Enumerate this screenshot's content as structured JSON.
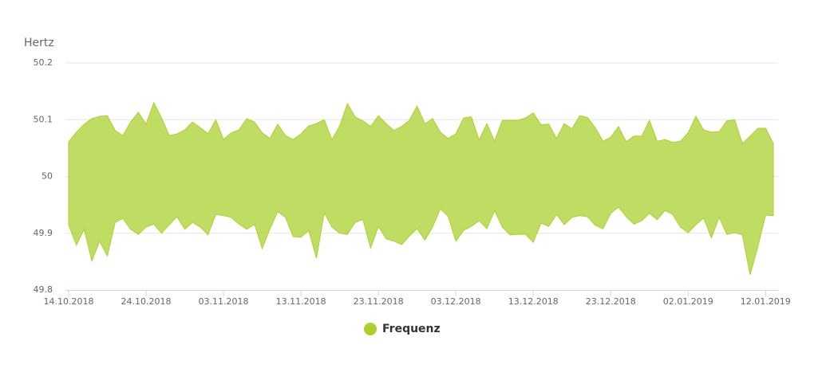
{
  "chart_data": {
    "type": "arearange",
    "y_axis_title": "Hertz",
    "x": [
      "14.10.2018",
      null,
      null,
      null,
      null,
      null,
      null,
      null,
      null,
      null,
      "24.10.2018",
      null,
      null,
      null,
      null,
      null,
      null,
      null,
      null,
      null,
      "03.11.2018",
      null,
      null,
      null,
      null,
      null,
      null,
      null,
      null,
      null,
      "13.11.2018",
      null,
      null,
      null,
      null,
      null,
      null,
      null,
      null,
      null,
      "23.11.2018",
      null,
      null,
      null,
      null,
      null,
      null,
      null,
      null,
      null,
      "03.12.2018",
      null,
      null,
      null,
      null,
      null,
      null,
      null,
      null,
      null,
      "13.12.2018",
      null,
      null,
      null,
      null,
      null,
      null,
      null,
      null,
      null,
      "23.12.2018",
      null,
      null,
      null,
      null,
      null,
      null,
      null,
      null,
      null,
      "02.01.2019",
      null,
      null,
      null,
      null,
      null,
      null,
      null,
      null,
      null,
      "12.01.2019",
      null
    ],
    "series": [
      {
        "name": "Frequenz",
        "color": "#abd12f",
        "high": [
          50.061,
          50.078,
          50.092,
          50.102,
          50.106,
          50.107,
          50.081,
          50.072,
          50.096,
          50.113,
          50.092,
          50.13,
          50.103,
          50.072,
          50.075,
          50.082,
          50.096,
          50.086,
          50.075,
          50.1,
          50.065,
          50.077,
          50.082,
          50.102,
          50.096,
          50.077,
          50.067,
          50.092,
          50.072,
          50.065,
          50.075,
          50.089,
          50.093,
          50.1,
          50.065,
          50.089,
          50.128,
          50.105,
          50.098,
          50.088,
          50.107,
          50.093,
          50.081,
          50.088,
          50.099,
          50.124,
          50.093,
          50.102,
          50.078,
          50.067,
          50.075,
          50.103,
          50.105,
          50.064,
          50.093,
          50.062,
          50.099,
          50.099,
          50.099,
          50.103,
          50.112,
          50.091,
          50.092,
          50.067,
          50.093,
          50.084,
          50.107,
          50.104,
          50.086,
          50.062,
          50.069,
          50.088,
          50.061,
          50.071,
          50.071,
          50.099,
          50.062,
          50.065,
          50.06,
          50.062,
          50.077,
          50.106,
          50.082,
          50.078,
          50.079,
          50.098,
          50.1,
          50.058,
          50.071,
          50.085,
          50.085,
          50.058
        ],
        "low": [
          49.915,
          49.879,
          49.907,
          49.851,
          49.886,
          49.86,
          49.919,
          49.926,
          49.907,
          49.898,
          49.911,
          49.916,
          49.9,
          49.915,
          49.929,
          49.907,
          49.919,
          49.911,
          49.897,
          49.933,
          49.931,
          49.928,
          49.916,
          49.907,
          49.916,
          49.873,
          49.908,
          49.938,
          49.928,
          49.894,
          49.893,
          49.905,
          49.856,
          49.936,
          49.911,
          49.9,
          49.898,
          49.919,
          49.924,
          49.874,
          49.912,
          49.89,
          49.886,
          49.88,
          49.895,
          49.908,
          49.888,
          49.911,
          49.943,
          49.93,
          49.886,
          49.905,
          49.912,
          49.922,
          49.908,
          49.94,
          49.911,
          49.897,
          49.898,
          49.898,
          49.884,
          49.918,
          49.912,
          49.933,
          49.915,
          49.928,
          49.931,
          49.929,
          49.914,
          49.908,
          49.935,
          49.946,
          49.929,
          49.916,
          49.922,
          49.935,
          49.924,
          49.94,
          49.933,
          49.911,
          49.901,
          49.915,
          49.927,
          49.892,
          49.928,
          49.898,
          49.901,
          49.897,
          49.827,
          49.876,
          49.932,
          49.931
        ]
      }
    ],
    "ylim": [
      49.8,
      50.2
    ],
    "yticks": [
      49.8,
      49.9,
      50,
      50.1,
      50.2
    ],
    "grid": true
  }
}
